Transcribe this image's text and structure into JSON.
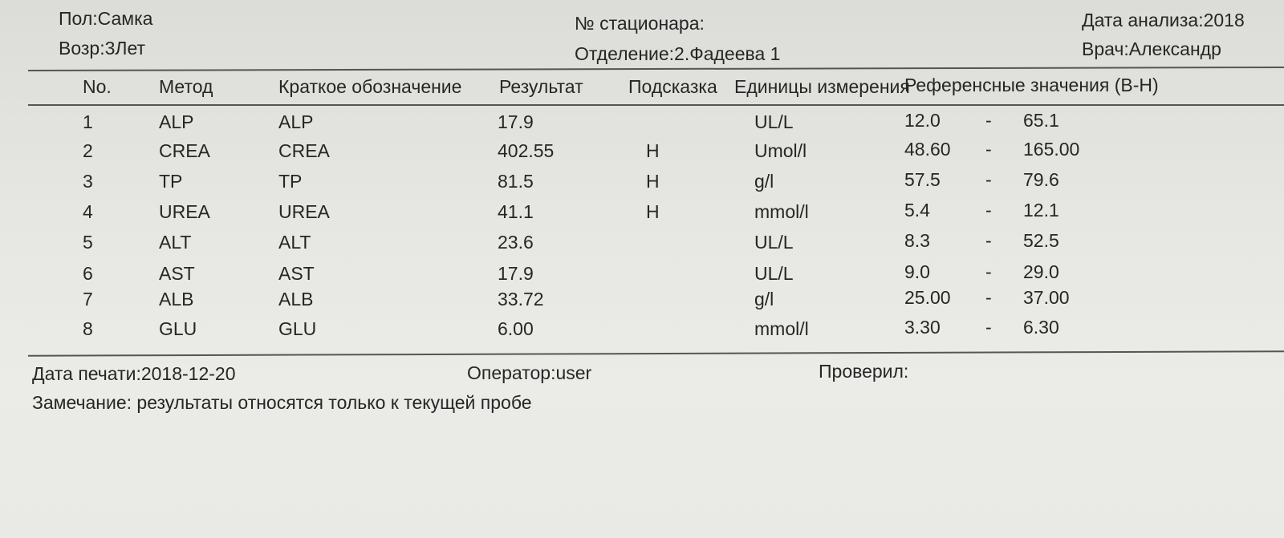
{
  "header": {
    "sex": "Пол:Самка",
    "age": "Возр:3Лет",
    "ward_no": "№ стационара:",
    "department": "Отделение:2.Фадеева 1",
    "analysis_date": "Дата анализа:2018",
    "doctor": "Врач:Александр"
  },
  "table": {
    "columns": [
      "No.",
      "Метод",
      "Краткое обозначение",
      "Результат",
      "Подсказка",
      "Единицы измерения",
      "Референсные значения (В-Н)"
    ],
    "rows": [
      {
        "no": "1",
        "method": "ALP",
        "short": "ALP",
        "result": "17.9",
        "hint": "",
        "unit": "UL/L",
        "low": "12.0",
        "dash": "-",
        "high": "65.1"
      },
      {
        "no": "2",
        "method": "CREA",
        "short": "CREA",
        "result": "402.55",
        "hint": "H",
        "unit": "Umol/l",
        "low": "48.60",
        "dash": "-",
        "high": "165.00"
      },
      {
        "no": "3",
        "method": "TP",
        "short": "TP",
        "result": "81.5",
        "hint": "H",
        "unit": "g/l",
        "low": "57.5",
        "dash": "-",
        "high": "79.6"
      },
      {
        "no": "4",
        "method": "UREA",
        "short": "UREA",
        "result": "41.1",
        "hint": "H",
        "unit": "mmol/l",
        "low": "5.4",
        "dash": "-",
        "high": "12.1"
      },
      {
        "no": "5",
        "method": "ALT",
        "short": "ALT",
        "result": "23.6",
        "hint": "",
        "unit": "UL/L",
        "low": "8.3",
        "dash": "-",
        "high": "52.5"
      },
      {
        "no": "6",
        "method": "AST",
        "short": "AST",
        "result": "17.9",
        "hint": "",
        "unit": "UL/L",
        "low": "9.0",
        "dash": "-",
        "high": "29.0"
      },
      {
        "no": "7",
        "method": "ALB",
        "short": "ALB",
        "result": "33.72",
        "hint": "",
        "unit": "g/l",
        "low": "25.00",
        "dash": "-",
        "high": "37.00"
      },
      {
        "no": "8",
        "method": "GLU",
        "short": "GLU",
        "result": "6.00",
        "hint": "",
        "unit": "mmol/l",
        "low": "3.30",
        "dash": "-",
        "high": "6.30"
      }
    ]
  },
  "footer": {
    "print_date": "Дата печати:2018-12-20",
    "operator": "Оператор:user",
    "checked": "Проверил:",
    "note": "Замечание: результаты относятся только к текущей пробе"
  }
}
